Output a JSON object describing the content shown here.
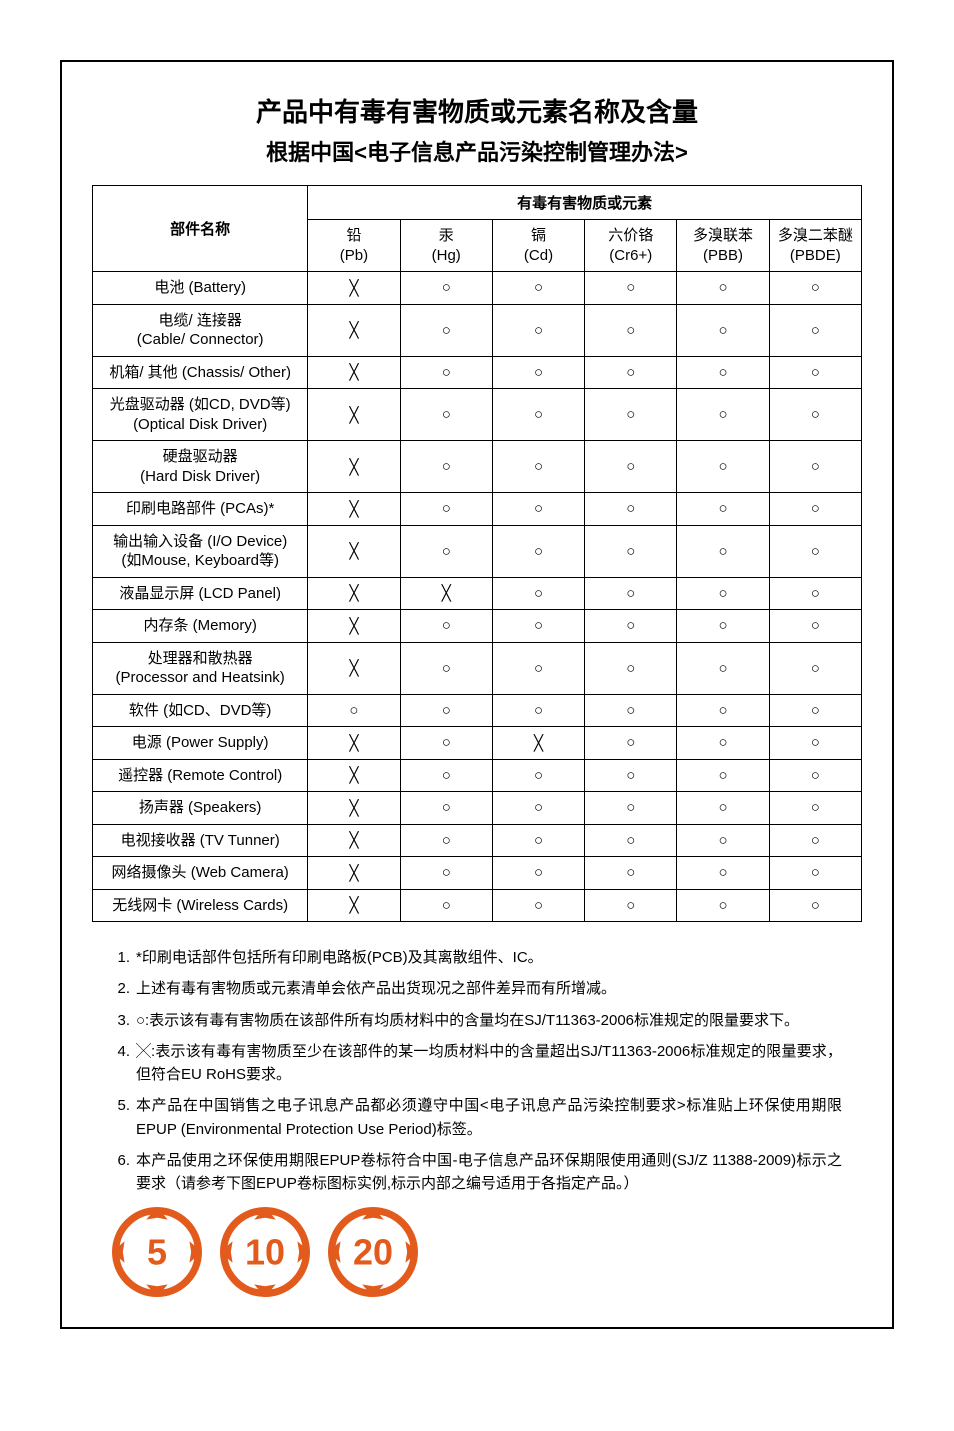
{
  "title": "产品中有毒有害物质或元素名称及含量",
  "subtitle": "根据中国<电子信息产品污染控制管理办法>",
  "table": {
    "group_header": "有毒有害物质或元素",
    "part_header": "部件名称",
    "columns": [
      {
        "top": "铅",
        "bottom": "(Pb)"
      },
      {
        "top": "汞",
        "bottom": "(Hg)"
      },
      {
        "top": "镉",
        "bottom": "(Cd)"
      },
      {
        "top": "六价铬",
        "bottom": "(Cr6+)"
      },
      {
        "top": "多溴联苯",
        "bottom": "(PBB)"
      },
      {
        "top": "多溴二苯醚",
        "bottom": "(PBDE)"
      }
    ],
    "symbols": {
      "pass": "○",
      "fail": "╳"
    },
    "rows": [
      {
        "label_cn": "电池",
        "label_en": "(Battery)",
        "single_line": true,
        "values": [
          "fail",
          "pass",
          "pass",
          "pass",
          "pass",
          "pass"
        ]
      },
      {
        "label_cn": "电缆/ 连接器",
        "label_en": "(Cable/ Connector)",
        "values": [
          "fail",
          "pass",
          "pass",
          "pass",
          "pass",
          "pass"
        ]
      },
      {
        "label_cn": "机箱/ 其他",
        "label_en": "(Chassis/ Other)",
        "single_line": true,
        "values": [
          "fail",
          "pass",
          "pass",
          "pass",
          "pass",
          "pass"
        ]
      },
      {
        "label_cn": "光盘驱动器 (如CD, DVD等)",
        "label_en": "(Optical Disk Driver)",
        "values": [
          "fail",
          "pass",
          "pass",
          "pass",
          "pass",
          "pass"
        ]
      },
      {
        "label_cn": "硬盘驱动器",
        "label_en": "(Hard Disk Driver)",
        "values": [
          "fail",
          "pass",
          "pass",
          "pass",
          "pass",
          "pass"
        ]
      },
      {
        "label_cn": "印刷电路部件",
        "label_en": "(PCAs)*",
        "single_line": true,
        "values": [
          "fail",
          "pass",
          "pass",
          "pass",
          "pass",
          "pass"
        ]
      },
      {
        "label_cn": "输出输入设备 (I/O Device)",
        "label_en": "(如Mouse, Keyboard等)",
        "values": [
          "fail",
          "pass",
          "pass",
          "pass",
          "pass",
          "pass"
        ]
      },
      {
        "label_cn": "液晶显示屏",
        "label_en": "(LCD Panel)",
        "single_line": true,
        "values": [
          "fail",
          "fail",
          "pass",
          "pass",
          "pass",
          "pass"
        ]
      },
      {
        "label_cn": "内存条",
        "label_en": "(Memory)",
        "single_line": true,
        "values": [
          "fail",
          "pass",
          "pass",
          "pass",
          "pass",
          "pass"
        ]
      },
      {
        "label_cn": "处理器和散热器",
        "label_en": "(Processor and Heatsink)",
        "values": [
          "fail",
          "pass",
          "pass",
          "pass",
          "pass",
          "pass"
        ]
      },
      {
        "label_cn": "软件",
        "label_en": "(如CD、DVD等)",
        "single_line": true,
        "values": [
          "pass",
          "pass",
          "pass",
          "pass",
          "pass",
          "pass"
        ]
      },
      {
        "label_cn": "电源",
        "label_en": "(Power Supply)",
        "single_line": true,
        "values": [
          "fail",
          "pass",
          "fail",
          "pass",
          "pass",
          "pass"
        ]
      },
      {
        "label_cn": "遥控器",
        "label_en": "(Remote Control)",
        "single_line": true,
        "values": [
          "fail",
          "pass",
          "pass",
          "pass",
          "pass",
          "pass"
        ]
      },
      {
        "label_cn": "扬声器",
        "label_en": "(Speakers)",
        "single_line": true,
        "values": [
          "fail",
          "pass",
          "pass",
          "pass",
          "pass",
          "pass"
        ]
      },
      {
        "label_cn": "电视接收器",
        "label_en": "(TV Tunner)",
        "single_line": true,
        "values": [
          "fail",
          "pass",
          "pass",
          "pass",
          "pass",
          "pass"
        ]
      },
      {
        "label_cn": "网络摄像头",
        "label_en": "(Web Camera)",
        "single_line": true,
        "values": [
          "fail",
          "pass",
          "pass",
          "pass",
          "pass",
          "pass"
        ]
      },
      {
        "label_cn": "无线网卡",
        "label_en": "(Wireless Cards)",
        "single_line": true,
        "values": [
          "fail",
          "pass",
          "pass",
          "pass",
          "pass",
          "pass"
        ]
      }
    ]
  },
  "notes": [
    "*印刷电话部件包括所有印刷电路板(PCB)及其离散组件、IC。",
    "上述有毒有害物质或元素清单会依产品出货现况之部件差异而有所增减。",
    "○:表示该有毒有害物质在该部件所有均质材料中的含量均在SJ/T11363-2006标准规定的限量要求下。",
    "╳:表示该有毒有害物质至少在该部件的某一均质材料中的含量超出SJ/T11363-2006标准规定的限量要求，但符合EU RoHS要求。",
    "本产品在中国销售之电子讯息产品都必须遵守中国<电子讯息产品污染控制要求>标准贴上环保使用期限EPUP (Environmental Protection Use Period)标签。",
    "本产品使用之环保使用期限EPUP卷标符合中国-电子信息产品环保期限使用通则(SJ/Z 11388-2009)标示之要求（请参考下图EPUP卷标图标实例,标示内部之编号适用于各指定产品。）"
  ],
  "epup": {
    "color": "#e35b1c",
    "badges": [
      5,
      10,
      20
    ]
  }
}
